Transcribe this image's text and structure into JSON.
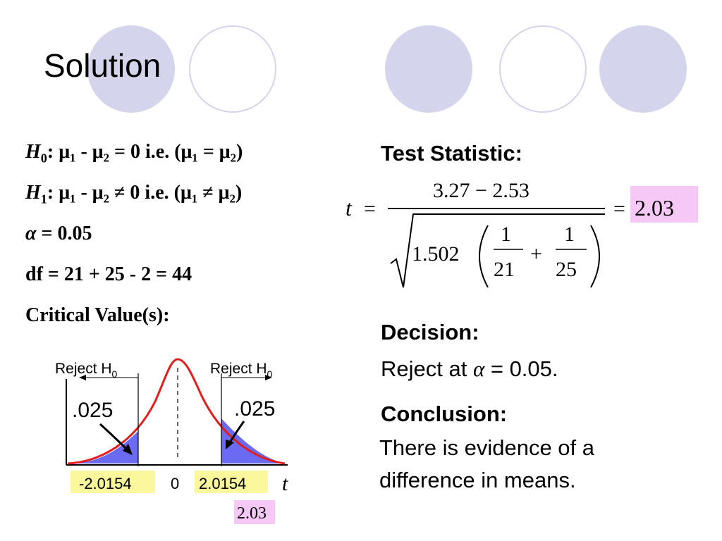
{
  "title": "Solution",
  "hypotheses": {
    "h0_label": "H",
    "h0_sub": "0",
    "h0_text": ": μ₁ - μ₂ = 0  i.e. (μ₁ = μ₂)",
    "h1_label": "H",
    "h1_sub": "1",
    "h1_text": ": μ₁ - μ₂ ≠ 0  i.e. (μ₁ ≠ μ₂)",
    "alpha_symbol": "α",
    "alpha_text": " = 0.05",
    "df_text": "df = 21 + 25 - 2 = 44",
    "critical_label": "Critical Value(s):"
  },
  "test_statistic": {
    "heading": "Test Statistic:",
    "t_symbol": "t",
    "equals": "=",
    "numerator": "3.27 − 2.53",
    "pooled_var": "1.502",
    "n1_num": "1",
    "n1_den": "21",
    "plus": "+",
    "n2_num": "1",
    "n2_den": "25",
    "result": "2.03"
  },
  "decision": {
    "heading": "Decision:",
    "text_prefix": "Reject at ",
    "alpha_symbol": "α",
    "text_suffix": " = 0.05."
  },
  "conclusion": {
    "heading": "Conclusion:",
    "line1": "There is evidence of a",
    "line2": "difference in means."
  },
  "diagram": {
    "reject_label": "Reject H",
    "reject_sub": "0",
    "tail_left": ".025",
    "tail_right": ".025",
    "crit_left": "-2.0154",
    "center": "0",
    "crit_right": "2.0154",
    "axis_label": "t",
    "stat_value": "2.03"
  },
  "colors": {
    "decor": "#d4d4ec",
    "highlight_pink": "#f6c8f6",
    "highlight_yellow": "#fbf79c",
    "curve": "#e11d1d",
    "tail_fill": "#6a6af2"
  }
}
